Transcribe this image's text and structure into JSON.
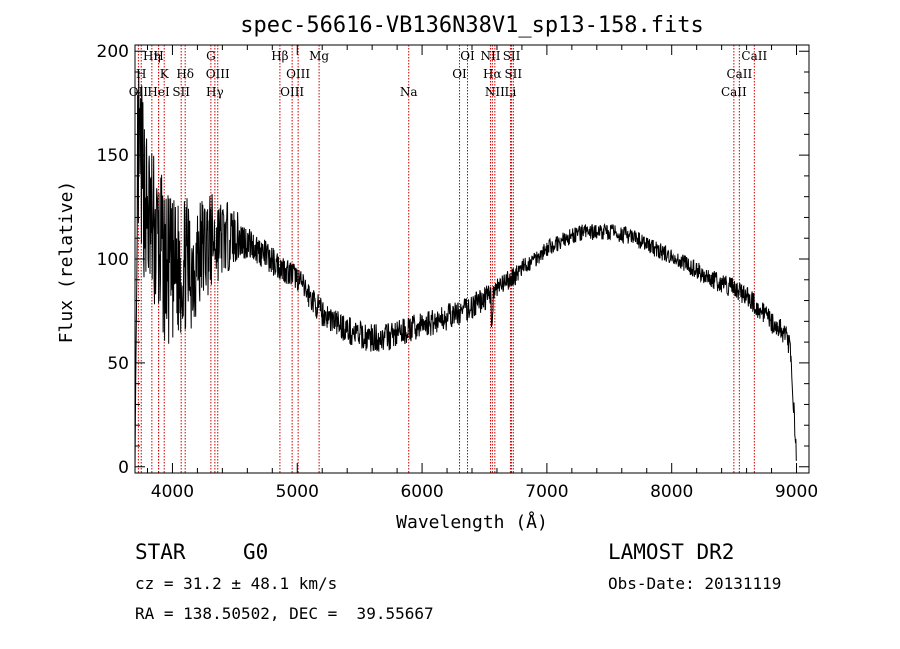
{
  "chart_data": {
    "type": "line",
    "title": "spec-56616-VB136N38V1_sp13-158.fits",
    "xlabel": "Wavelength (Å)",
    "ylabel": "Flux (relative)",
    "xlim": [
      3700,
      9100
    ],
    "ylim": [
      -3,
      203
    ],
    "x_ticks": [
      4000,
      5000,
      6000,
      7000,
      8000,
      9000
    ],
    "y_ticks": [
      0,
      50,
      100,
      150,
      200
    ],
    "line_color": "#000000",
    "marker_color": "#cc0000",
    "continuum": [
      {
        "x": 3700,
        "y": 5
      },
      {
        "x": 3720,
        "y": 150
      },
      {
        "x": 3760,
        "y": 140
      },
      {
        "x": 3800,
        "y": 120
      },
      {
        "x": 3850,
        "y": 112
      },
      {
        "x": 3900,
        "y": 105
      },
      {
        "x": 3950,
        "y": 95
      },
      {
        "x": 4000,
        "y": 92
      },
      {
        "x": 4050,
        "y": 95
      },
      {
        "x": 4100,
        "y": 98
      },
      {
        "x": 4150,
        "y": 96
      },
      {
        "x": 4200,
        "y": 100
      },
      {
        "x": 4250,
        "y": 106
      },
      {
        "x": 4300,
        "y": 108
      },
      {
        "x": 4400,
        "y": 110
      },
      {
        "x": 4500,
        "y": 111
      },
      {
        "x": 4600,
        "y": 108
      },
      {
        "x": 4700,
        "y": 104
      },
      {
        "x": 4800,
        "y": 99
      },
      {
        "x": 4900,
        "y": 95
      },
      {
        "x": 5000,
        "y": 91
      },
      {
        "x": 5100,
        "y": 82
      },
      {
        "x": 5200,
        "y": 74
      },
      {
        "x": 5300,
        "y": 70
      },
      {
        "x": 5400,
        "y": 66
      },
      {
        "x": 5500,
        "y": 63
      },
      {
        "x": 5600,
        "y": 62
      },
      {
        "x": 5700,
        "y": 62
      },
      {
        "x": 5800,
        "y": 64
      },
      {
        "x": 5900,
        "y": 66
      },
      {
        "x": 6000,
        "y": 68
      },
      {
        "x": 6100,
        "y": 70
      },
      {
        "x": 6200,
        "y": 72
      },
      {
        "x": 6300,
        "y": 74
      },
      {
        "x": 6400,
        "y": 77
      },
      {
        "x": 6500,
        "y": 81
      },
      {
        "x": 6600,
        "y": 85
      },
      {
        "x": 6700,
        "y": 90
      },
      {
        "x": 6800,
        "y": 95
      },
      {
        "x": 6900,
        "y": 100
      },
      {
        "x": 7000,
        "y": 105
      },
      {
        "x": 7100,
        "y": 108
      },
      {
        "x": 7200,
        "y": 111
      },
      {
        "x": 7300,
        "y": 113
      },
      {
        "x": 7400,
        "y": 113
      },
      {
        "x": 7500,
        "y": 113
      },
      {
        "x": 7600,
        "y": 112
      },
      {
        "x": 7700,
        "y": 110
      },
      {
        "x": 7800,
        "y": 107
      },
      {
        "x": 7900,
        "y": 104
      },
      {
        "x": 8000,
        "y": 101
      },
      {
        "x": 8100,
        "y": 98
      },
      {
        "x": 8200,
        "y": 95
      },
      {
        "x": 8300,
        "y": 91
      },
      {
        "x": 8400,
        "y": 88
      },
      {
        "x": 8500,
        "y": 86
      },
      {
        "x": 8600,
        "y": 82
      },
      {
        "x": 8700,
        "y": 76
      },
      {
        "x": 8800,
        "y": 70
      },
      {
        "x": 8900,
        "y": 64
      },
      {
        "x": 8950,
        "y": 58
      },
      {
        "x": 9000,
        "y": 5
      }
    ],
    "noise": [
      {
        "x": 3700,
        "amp": 45
      },
      {
        "x": 4200,
        "amp": 30
      },
      {
        "x": 4600,
        "amp": 8
      },
      {
        "x": 5000,
        "amp": 6
      },
      {
        "x": 5500,
        "amp": 7
      },
      {
        "x": 6500,
        "amp": 6
      },
      {
        "x": 7000,
        "amp": 4
      },
      {
        "x": 8000,
        "amp": 4
      },
      {
        "x": 9000,
        "amp": 6
      }
    ],
    "spectral_lines": [
      {
        "label": "Hη",
        "x": 3835,
        "row": 0
      },
      {
        "label": "H",
        "x": 3889,
        "row": 0
      },
      {
        "label": "G",
        "x": 4308,
        "row": 0
      },
      {
        "label": "Hβ",
        "x": 4861,
        "row": 0
      },
      {
        "label": "Mg",
        "x": 5175,
        "row": 0
      },
      {
        "label": "OI",
        "x": 6364,
        "row": 0
      },
      {
        "label": "NII",
        "x": 6548,
        "row": 0
      },
      {
        "label": "SII",
        "x": 6717,
        "row": 0
      },
      {
        "label": "CaII",
        "x": 8662,
        "row": 0
      },
      {
        "label": "H",
        "x": 3750,
        "row": 1
      },
      {
        "label": "K",
        "x": 3934,
        "row": 1
      },
      {
        "label": "Hδ",
        "x": 4102,
        "row": 1
      },
      {
        "label": "OIII",
        "x": 4363,
        "row": 1
      },
      {
        "label": "OIII",
        "x": 5007,
        "row": 1
      },
      {
        "label": "OI",
        "x": 6300,
        "row": 1
      },
      {
        "label": "Hα",
        "x": 6563,
        "row": 1
      },
      {
        "label": "SII",
        "x": 6731,
        "row": 1
      },
      {
        "label": "CaII",
        "x": 8542,
        "row": 1
      },
      {
        "label": "OII",
        "x": 3727,
        "row": 2
      },
      {
        "label": "HeI",
        "x": 3889,
        "row": 2
      },
      {
        "label": "SII",
        "x": 4070,
        "row": 2
      },
      {
        "label": "Hγ",
        "x": 4340,
        "row": 2
      },
      {
        "label": "OIII",
        "x": 4959,
        "row": 2
      },
      {
        "label": "Na",
        "x": 5893,
        "row": 2
      },
      {
        "label": "NII",
        "x": 6583,
        "row": 2
      },
      {
        "label": "Li",
        "x": 6708,
        "row": 2
      },
      {
        "label": "CaII",
        "x": 8498,
        "row": 2
      }
    ]
  },
  "info": {
    "object_class": "STAR",
    "subclass": "G0",
    "cz": "cz = 31.2 ± 48.1 km/s",
    "coords": "RA = 138.50502, DEC =  39.55667",
    "survey": "LAMOST DR2",
    "obs_date": "Obs-Date: 20131119"
  }
}
